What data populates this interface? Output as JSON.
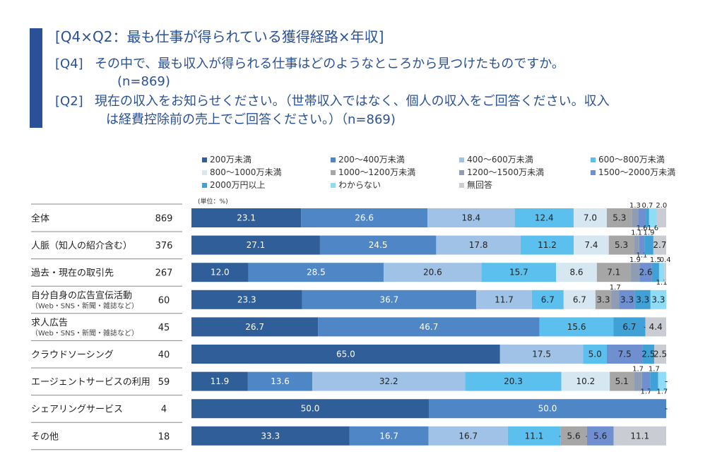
{
  "header": {
    "title": "[Q4×Q2：最も仕事が得られている獲得経路×年収]",
    "q4_label": "[Q4]",
    "q4_text": "その中で、最も収入が得られる仕事はどのようなところから見つけたものですか。",
    "q4_n": "(n=869)",
    "q2_label": "[Q2]",
    "q2_text_1": "現在の収入をお知らせください。（世帯収入ではなく、個人の収入をご回答ください。収入",
    "q2_text_2": "は経費控除前の売上でご回答ください。）（n=869)"
  },
  "colors": {
    "accent": "#2a5196",
    "separator": "#8a8a8a"
  },
  "chart_data": {
    "type": "bar",
    "orientation": "horizontal-stacked-100",
    "unit_label": "(単位：%)",
    "xlim": [
      0,
      100
    ],
    "legend": {
      "placement": "top",
      "entries": [
        {
          "name": "200万未満",
          "color": "#2f5e99"
        },
        {
          "name": "200～400万未満",
          "color": "#4f86c6"
        },
        {
          "name": "400～600万未満",
          "color": "#9fc2e6"
        },
        {
          "name": "600～800万未満",
          "color": "#5cc0ee"
        },
        {
          "name": "800～1000万未満",
          "color": "#d6e7f2"
        },
        {
          "name": "1000～1200万未満",
          "color": "#a6a6a6"
        },
        {
          "name": "1200～1500万未満",
          "color": "#8f9db4"
        },
        {
          "name": "1500～2000万未満",
          "color": "#6f8fd0"
        },
        {
          "name": "2000万円以上",
          "color": "#3fa1d6"
        },
        {
          "name": "わからない",
          "color": "#8edcf5"
        },
        {
          "name": "無回答",
          "color": "#c9ccd3"
        }
      ]
    },
    "categories": [
      {
        "label": "全体",
        "sublabel": "",
        "n": "869",
        "values": [
          23.1,
          26.6,
          18.4,
          12.4,
          7.0,
          5.3,
          1.3,
          1.6,
          0.7,
          1.6,
          2.0
        ],
        "labels": [
          "23.1",
          "26.6",
          "18.4",
          "12.4",
          "7.0",
          "5.3",
          "1.3",
          "1.6",
          "0.7",
          "1.6",
          "2.0"
        ]
      },
      {
        "label": "人脈（知人の紹介含む）",
        "sublabel": "",
        "n": "376",
        "values": [
          27.1,
          24.5,
          17.8,
          11.2,
          7.4,
          5.3,
          1.1,
          1.1,
          1.9,
          0,
          2.7
        ],
        "labels": [
          "27.1",
          "24.5",
          "17.8",
          "11.2",
          "7.4",
          "5.3",
          "1.1",
          "1.1",
          "1.9",
          "",
          "2.7"
        ]
      },
      {
        "label": "過去・現在の取引先",
        "sublabel": "",
        "n": "267",
        "values": [
          12.0,
          28.5,
          20.6,
          15.7,
          8.6,
          7.1,
          1.9,
          2.6,
          1.5,
          1.1,
          0.4
        ],
        "labels": [
          "12.0",
          "28.5",
          "20.6",
          "15.7",
          "8.6",
          "7.1",
          "1.9",
          "2.6",
          "1.5",
          "1.1",
          "0.4"
        ]
      },
      {
        "label": "自分自身の広告宣伝活動",
        "sublabel": "（Web・SNS・新聞・雑誌など）",
        "n": "60",
        "values": [
          23.3,
          36.7,
          11.7,
          6.7,
          6.7,
          3.3,
          1.7,
          3.3,
          3.3,
          3.3,
          0
        ],
        "labels": [
          "23.3",
          "36.7",
          "11.7",
          "6.7",
          "6.7",
          "3.3",
          "1.7",
          "3.3",
          "3.3",
          "3.3",
          ""
        ]
      },
      {
        "label": "求人広告",
        "sublabel": "（Web・SNS・新聞・雑誌など）",
        "n": "45",
        "values": [
          26.7,
          46.7,
          0,
          15.6,
          0,
          0,
          0,
          0,
          6.7,
          0,
          4.4
        ],
        "labels": [
          "26.7",
          "46.7",
          "",
          "15.6",
          "",
          "",
          "",
          "",
          "6.7",
          "-",
          "4.4"
        ]
      },
      {
        "label": "クラウドソーシング",
        "sublabel": "",
        "n": "40",
        "values": [
          65.0,
          0,
          17.5,
          5.0,
          0,
          0,
          0,
          7.5,
          2.5,
          0,
          2.5
        ],
        "labels": [
          "65.0",
          "",
          "17.5",
          "5.0",
          "",
          "",
          "",
          "7.5",
          "2.5",
          "-",
          "2.5"
        ]
      },
      {
        "label": "エージェントサービスの利用",
        "sublabel": "",
        "n": "59",
        "values": [
          11.9,
          13.6,
          32.2,
          20.3,
          10.2,
          5.1,
          1.7,
          1.7,
          1.7,
          1.7,
          0
        ],
        "labels": [
          "11.9",
          "13.6",
          "32.2",
          "20.3",
          "10.2",
          "5.1",
          "1.7",
          "1.7",
          "1.7",
          "1.7",
          "-"
        ]
      },
      {
        "label": "シェアリングサービス",
        "sublabel": "",
        "n": "4",
        "values": [
          50.0,
          50.0,
          0,
          0,
          0,
          0,
          0,
          0,
          0,
          0,
          0
        ],
        "labels": [
          "50.0",
          "50.0",
          "",
          "",
          "",
          "",
          "",
          "",
          "",
          "",
          "-"
        ]
      },
      {
        "label": "その他",
        "sublabel": "",
        "n": "18",
        "values": [
          33.3,
          16.7,
          16.7,
          11.1,
          0,
          5.6,
          0,
          5.6,
          0,
          0,
          11.1
        ],
        "labels": [
          "33.3",
          "16.7",
          "16.7",
          "11.1",
          "-",
          "5.6",
          "-",
          "5.6",
          "",
          "",
          "11.1"
        ]
      }
    ]
  }
}
